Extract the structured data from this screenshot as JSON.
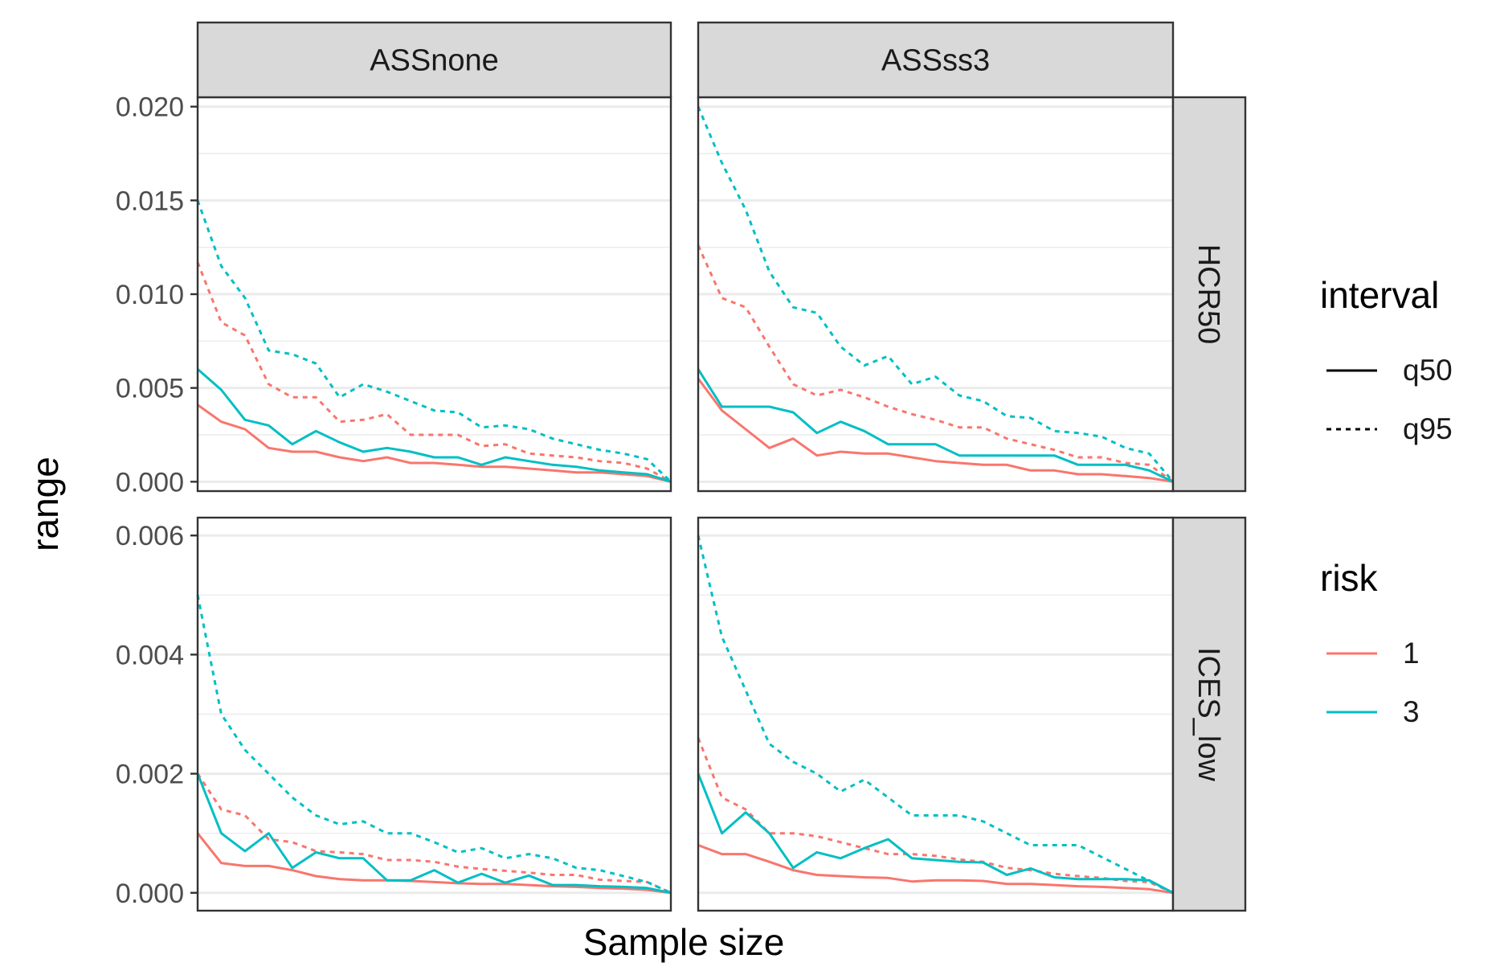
{
  "chart_data": {
    "type": "line",
    "layout": "facet_grid",
    "xlabel": "Sample size",
    "ylabel": "range",
    "x_ticks_shown": false,
    "grid": true,
    "col_facets": [
      "ASSnone",
      "ASSss3"
    ],
    "row_facets": [
      {
        "label": "HCR50",
        "ylim": [
          -0.0005,
          0.0205
        ],
        "y_ticks": [
          "0.000",
          "0.005",
          "0.010",
          "0.015",
          "0.020"
        ],
        "y_tick_values": [
          0,
          0.005,
          0.01,
          0.015,
          0.02
        ]
      },
      {
        "label": "ICES_low",
        "ylim": [
          -0.0003,
          0.0063
        ],
        "y_ticks": [
          "0.000",
          "0.002",
          "0.004",
          "0.006"
        ],
        "y_tick_values": [
          0,
          0.002,
          0.004,
          0.006
        ]
      }
    ],
    "x": [
      1,
      2,
      3,
      4,
      5,
      6,
      7,
      8,
      9,
      10,
      11,
      12,
      13,
      14,
      15,
      16,
      17,
      18,
      19,
      20,
      21
    ],
    "colors": {
      "1": "#F8766D",
      "3": "#00BFC4"
    },
    "legends": [
      {
        "title": "interval",
        "entries": [
          {
            "label": "q50",
            "style": "solid"
          },
          {
            "label": "q95",
            "style": "dashed"
          }
        ]
      },
      {
        "title": "risk",
        "entries": [
          {
            "label": "1",
            "color": "#F8766D"
          },
          {
            "label": "3",
            "color": "#00BFC4"
          }
        ]
      }
    ],
    "panels": [
      {
        "row": "HCR50",
        "col": "ASSnone",
        "series": [
          {
            "risk": "1",
            "interval": "q50",
            "values": [
              0.0041,
              0.0032,
              0.0028,
              0.0018,
              0.0016,
              0.0016,
              0.0013,
              0.0011,
              0.0013,
              0.001,
              0.001,
              0.0009,
              0.0008,
              0.0008,
              0.0007,
              0.0006,
              0.0005,
              0.0005,
              0.0004,
              0.0003,
              0.0
            ]
          },
          {
            "risk": "3",
            "interval": "q50",
            "values": [
              0.006,
              0.0049,
              0.0033,
              0.003,
              0.002,
              0.0027,
              0.0021,
              0.0016,
              0.0018,
              0.0016,
              0.0013,
              0.0013,
              0.0009,
              0.0013,
              0.0011,
              0.0009,
              0.0008,
              0.0006,
              0.0005,
              0.0004,
              0.0
            ]
          },
          {
            "risk": "1",
            "interval": "q95",
            "values": [
              0.0117,
              0.0085,
              0.0078,
              0.0052,
              0.0045,
              0.0045,
              0.0032,
              0.0033,
              0.0036,
              0.0025,
              0.0025,
              0.0025,
              0.0019,
              0.002,
              0.0015,
              0.0014,
              0.0013,
              0.0011,
              0.001,
              0.0007,
              0.0
            ]
          },
          {
            "risk": "3",
            "interval": "q95",
            "values": [
              0.015,
              0.0115,
              0.0098,
              0.007,
              0.0068,
              0.0063,
              0.0045,
              0.0052,
              0.0048,
              0.0043,
              0.0038,
              0.0037,
              0.0029,
              0.003,
              0.0028,
              0.0023,
              0.002,
              0.0017,
              0.0015,
              0.0012,
              0.0
            ]
          }
        ]
      },
      {
        "row": "HCR50",
        "col": "ASSss3",
        "series": [
          {
            "risk": "1",
            "interval": "q50",
            "values": [
              0.0055,
              0.0038,
              0.0028,
              0.0018,
              0.0023,
              0.0014,
              0.0016,
              0.0015,
              0.0015,
              0.0013,
              0.0011,
              0.001,
              0.0009,
              0.0009,
              0.0006,
              0.0006,
              0.0004,
              0.0004,
              0.0003,
              0.0002,
              0.0
            ]
          },
          {
            "risk": "3",
            "interval": "q50",
            "values": [
              0.006,
              0.004,
              0.004,
              0.004,
              0.0037,
              0.0026,
              0.0032,
              0.0027,
              0.002,
              0.002,
              0.002,
              0.0014,
              0.0014,
              0.0014,
              0.0014,
              0.0014,
              0.0009,
              0.0009,
              0.0009,
              0.0006,
              0.0
            ]
          },
          {
            "risk": "1",
            "interval": "q95",
            "values": [
              0.0126,
              0.0098,
              0.0093,
              0.0072,
              0.0052,
              0.0046,
              0.0049,
              0.0045,
              0.004,
              0.0036,
              0.0033,
              0.0029,
              0.0029,
              0.0023,
              0.002,
              0.0017,
              0.0013,
              0.0013,
              0.001,
              0.0009,
              0.0
            ]
          },
          {
            "risk": "3",
            "interval": "q95",
            "values": [
              0.02,
              0.017,
              0.0145,
              0.0112,
              0.0093,
              0.009,
              0.0072,
              0.0062,
              0.0067,
              0.0052,
              0.0056,
              0.0046,
              0.0043,
              0.0035,
              0.0034,
              0.0027,
              0.0026,
              0.0024,
              0.0018,
              0.0015,
              0.0
            ]
          }
        ]
      },
      {
        "row": "ICES_low",
        "col": "ASSnone",
        "series": [
          {
            "risk": "1",
            "interval": "q50",
            "values": [
              0.001,
              0.0005,
              0.00045,
              0.00045,
              0.00038,
              0.00028,
              0.00023,
              0.00021,
              0.00021,
              0.0002,
              0.00018,
              0.00016,
              0.00015,
              0.00015,
              0.00013,
              0.00011,
              0.0001,
              8e-05,
              7e-05,
              5e-05,
              0.0
            ]
          },
          {
            "risk": "3",
            "interval": "q50",
            "values": [
              0.002,
              0.001,
              0.0007,
              0.001,
              0.00042,
              0.00068,
              0.00058,
              0.00058,
              0.00021,
              0.00021,
              0.00038,
              0.00017,
              0.00032,
              0.00017,
              0.00029,
              0.00013,
              0.00013,
              0.00011,
              0.0001,
              8e-05,
              0.0
            ]
          },
          {
            "risk": "1",
            "interval": "q95",
            "values": [
              0.002,
              0.0014,
              0.0013,
              0.0009,
              0.00085,
              0.0007,
              0.00068,
              0.00065,
              0.00055,
              0.00055,
              0.00052,
              0.00044,
              0.0004,
              0.00037,
              0.00034,
              0.0003,
              0.0003,
              0.00022,
              0.0002,
              0.00018,
              0.0
            ]
          },
          {
            "risk": "3",
            "interval": "q95",
            "values": [
              0.005,
              0.003,
              0.0024,
              0.002,
              0.0016,
              0.0013,
              0.00115,
              0.0012,
              0.001,
              0.001,
              0.00085,
              0.00068,
              0.00075,
              0.00058,
              0.00065,
              0.00058,
              0.00042,
              0.00038,
              0.00028,
              0.00018,
              0.0
            ]
          }
        ]
      },
      {
        "row": "ICES_low",
        "col": "ASSss3",
        "series": [
          {
            "risk": "1",
            "interval": "q50",
            "values": [
              0.0008,
              0.00065,
              0.00065,
              0.00052,
              0.00038,
              0.0003,
              0.00028,
              0.00026,
              0.00025,
              0.00019,
              0.00021,
              0.00021,
              0.0002,
              0.00015,
              0.00015,
              0.00013,
              0.00011,
              0.0001,
              8e-05,
              6e-05,
              0.0
            ]
          },
          {
            "risk": "3",
            "interval": "q50",
            "values": [
              0.002,
              0.001,
              0.00135,
              0.001,
              0.00042,
              0.00068,
              0.00058,
              0.00075,
              0.0009,
              0.00058,
              0.00055,
              0.00052,
              0.00051,
              0.0003,
              0.00041,
              0.00026,
              0.00023,
              0.00023,
              0.00023,
              0.00021,
              0.0
            ]
          },
          {
            "risk": "1",
            "interval": "q95",
            "values": [
              0.0026,
              0.0016,
              0.0014,
              0.001,
              0.001,
              0.00095,
              0.00085,
              0.00075,
              0.00065,
              0.00065,
              0.00062,
              0.00056,
              0.00052,
              0.00042,
              0.00038,
              0.00032,
              0.00028,
              0.00025,
              0.0002,
              0.00018,
              0.0
            ]
          },
          {
            "risk": "3",
            "interval": "q95",
            "values": [
              0.006,
              0.0043,
              0.0034,
              0.0025,
              0.0022,
              0.002,
              0.0017,
              0.0019,
              0.0016,
              0.0013,
              0.0013,
              0.0013,
              0.0012,
              0.001,
              0.0008,
              0.0008,
              0.0008,
              0.0006,
              0.0004,
              0.0002,
              0.0
            ]
          }
        ]
      }
    ]
  }
}
